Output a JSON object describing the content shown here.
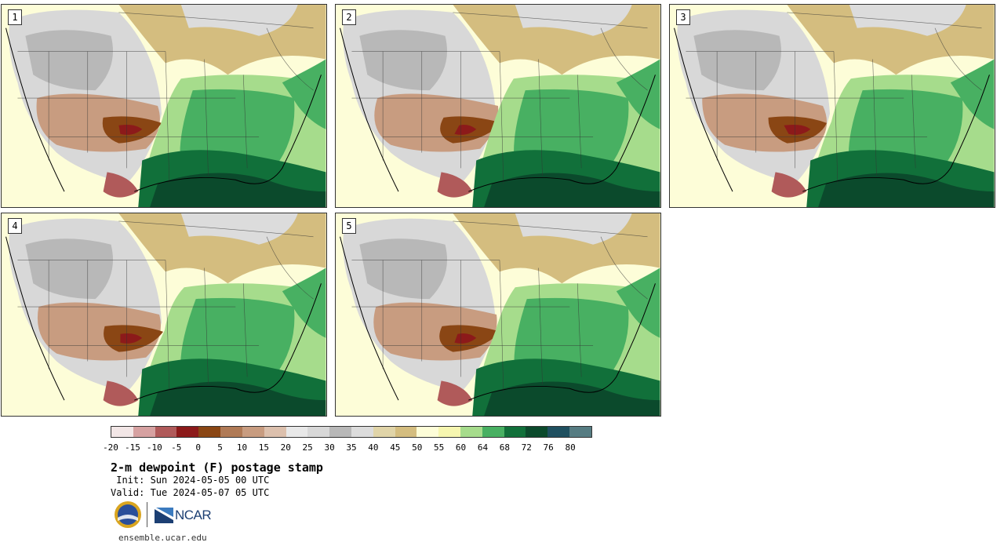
{
  "title": "2-m dewpoint (F) postage stamp",
  "init": " Init: Sun 2024-05-05 00 UTC",
  "valid": "Valid: Tue 2024-05-07 05 UTC",
  "website": "ensemble.ucar.edu",
  "logos": {
    "ncar_text": "NCAR",
    "nsf_text": "NSF"
  },
  "members": [
    {
      "label": "1"
    },
    {
      "label": "2"
    },
    {
      "label": "3"
    },
    {
      "label": "4"
    },
    {
      "label": "5"
    }
  ],
  "colorbar": {
    "colors": [
      "#f2e6e6",
      "#d6a1a1",
      "#b05a5a",
      "#8c1a1a",
      "#8a4614",
      "#b07a56",
      "#c89c80",
      "#dcc0ad",
      "#e8e8e8",
      "#d8d8d8",
      "#b8b8b8",
      "#dcdcdc",
      "#e0d4a8",
      "#d4bd7f",
      "#fdfdd8",
      "#f6f6b0",
      "#a6dc8c",
      "#48b062",
      "#11703a",
      "#0b4a2c",
      "#1f5060",
      "#567c82"
    ],
    "tick_labels": [
      "-20",
      "-15",
      "-10",
      "-5",
      "0",
      "5",
      "10",
      "15",
      "20",
      "25",
      "30",
      "35",
      "40",
      "45",
      "50",
      "55",
      "60",
      "64",
      "68",
      "72",
      "76",
      "80"
    ]
  }
}
